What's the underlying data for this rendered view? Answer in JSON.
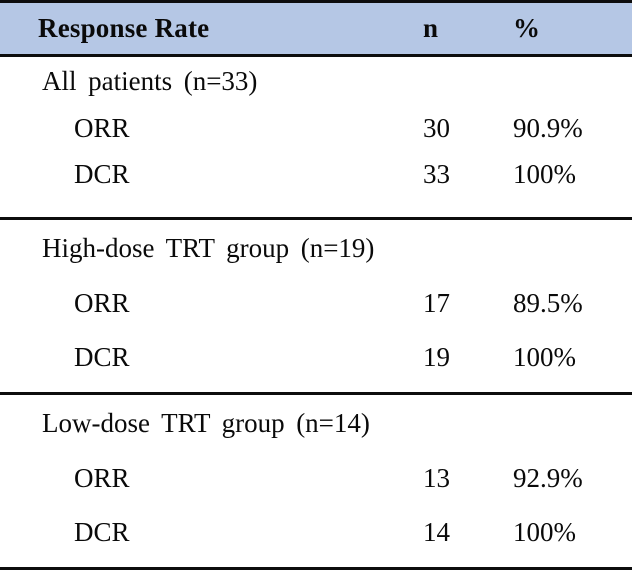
{
  "table": {
    "header": {
      "col1": "Response Rate",
      "col2": "n",
      "col3": "%"
    },
    "sections": [
      {
        "label": "All patients (n=33)",
        "rows": [
          {
            "name": "ORR",
            "n": "30",
            "pct": "90.9%"
          },
          {
            "name": "DCR",
            "n": "33",
            "pct": "100%"
          }
        ]
      },
      {
        "label": "High-dose TRT group (n=19)",
        "rows": [
          {
            "name": "ORR",
            "n": "17",
            "pct": "89.5%"
          },
          {
            "name": "DCR",
            "n": "19",
            "pct": "100%"
          }
        ]
      },
      {
        "label": "Low-dose TRT group (n=14)",
        "rows": [
          {
            "name": "ORR",
            "n": "13",
            "pct": "92.9%"
          },
          {
            "name": "DCR",
            "n": "14",
            "pct": "100%"
          }
        ]
      }
    ],
    "colors": {
      "header_bg": "#b5c7e5",
      "rule": "#0d0d0d"
    }
  }
}
